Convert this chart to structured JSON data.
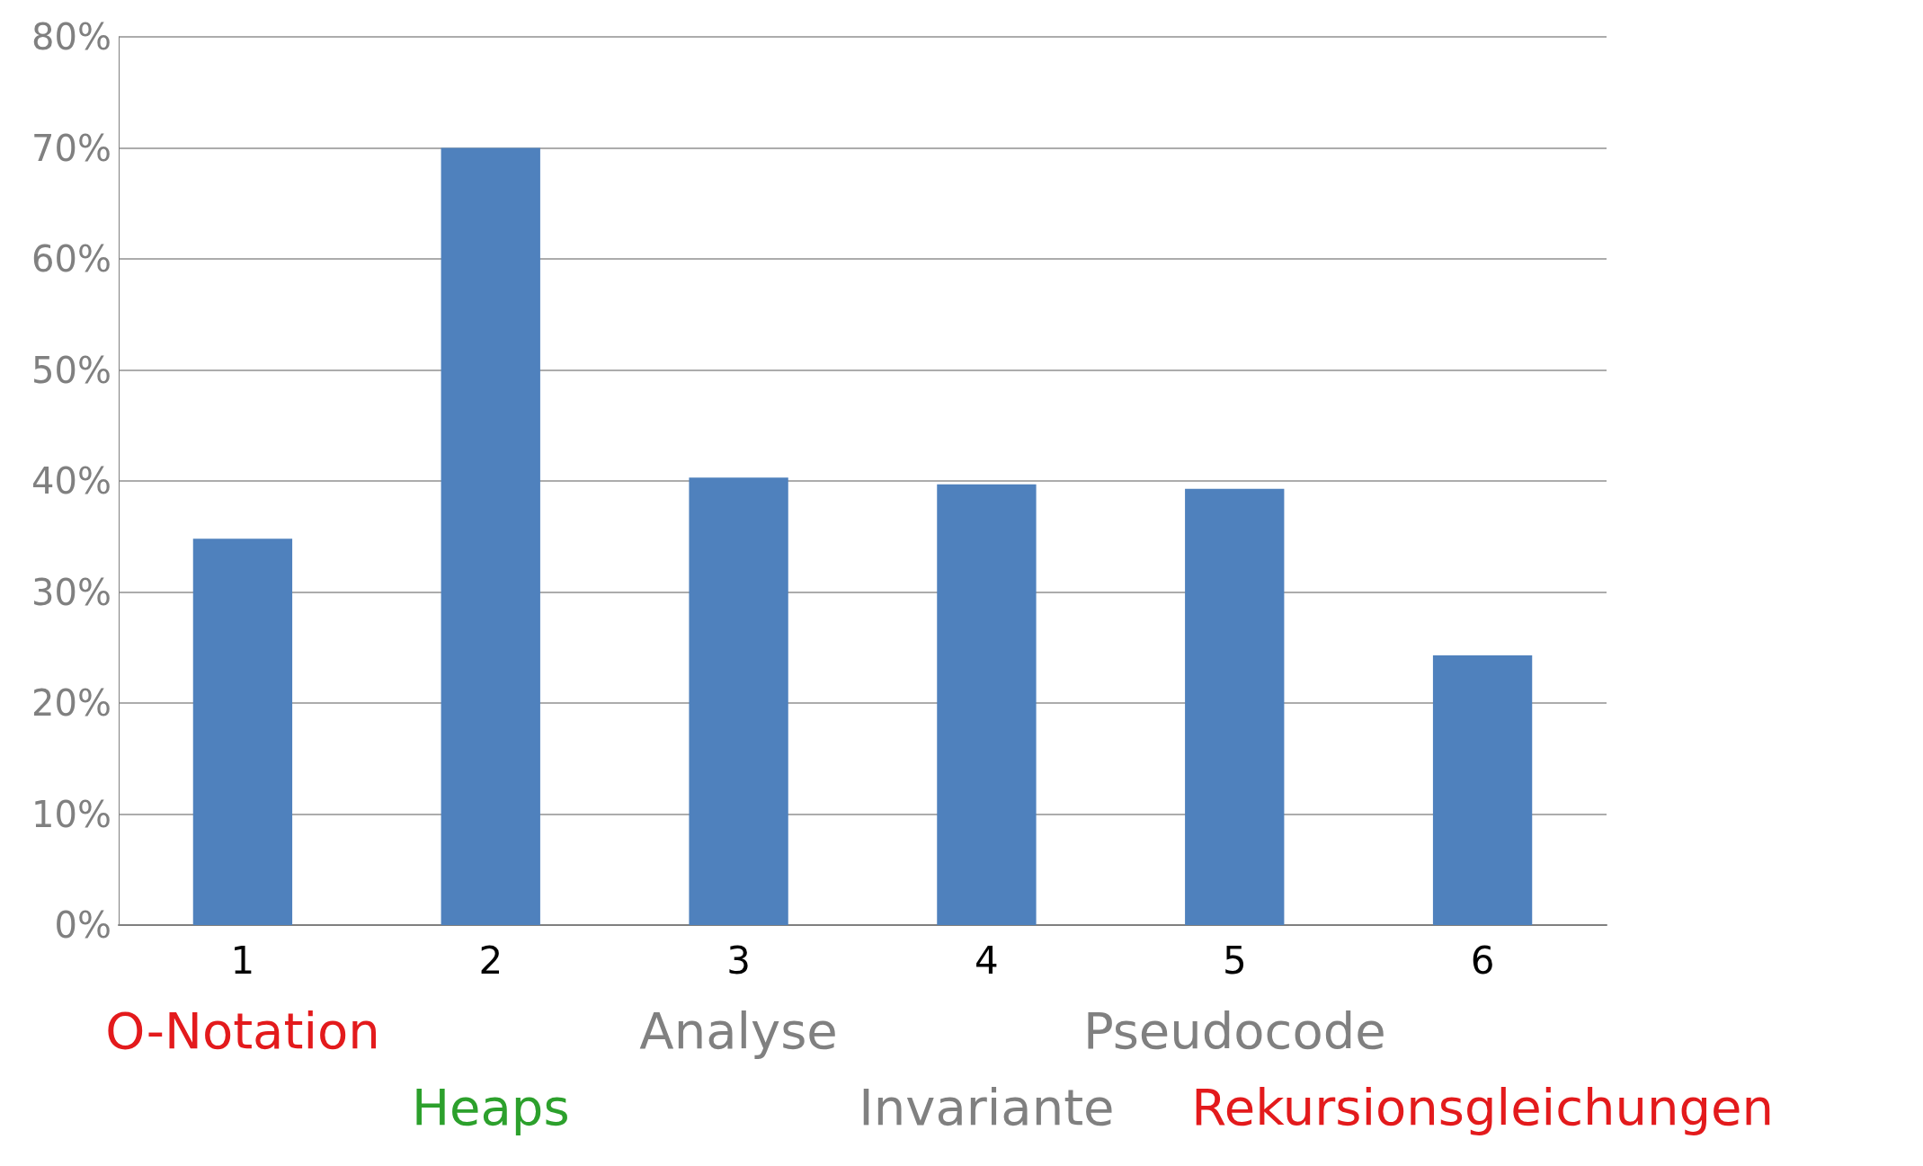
{
  "chart_data": {
    "type": "bar",
    "categories": [
      "1",
      "2",
      "3",
      "4",
      "5",
      "6"
    ],
    "values": [
      34.8,
      70,
      40.3,
      39.7,
      39.3,
      24.3
    ],
    "color": "#4f81bd",
    "ylim": [
      0,
      80
    ],
    "yticks": [
      {
        "value": 0,
        "label": "0%"
      },
      {
        "value": 10,
        "label": "10%"
      },
      {
        "value": 20,
        "label": "20%"
      },
      {
        "value": 30,
        "label": "30%"
      },
      {
        "value": 40,
        "label": "40%"
      },
      {
        "value": 50,
        "label": "50%"
      },
      {
        "value": 60,
        "label": "60%"
      },
      {
        "value": 70,
        "label": "70%"
      },
      {
        "value": 80,
        "label": "80%"
      }
    ],
    "grid": "y",
    "annotations": [
      "O-Notation",
      "Heaps",
      "Analyse",
      "Invariante",
      "Pseudocode",
      "Rekursionsgleichungen"
    ]
  }
}
